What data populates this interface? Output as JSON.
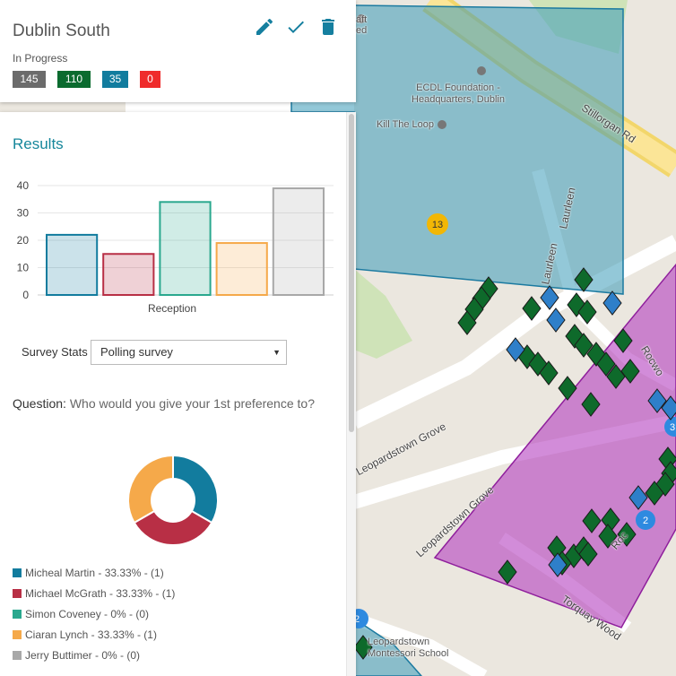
{
  "map": {
    "poi": [
      {
        "name": "ECDL Foundation - Headquarters, Dublin"
      },
      {
        "name": "Kill The Loop"
      },
      {
        "name": "Leopardstown Montessori School"
      }
    ],
    "poi_partial": [
      "aft",
      "ed"
    ],
    "roads": [
      "Stillorgan Rd",
      "Laurleen",
      "Laurleen",
      "Leopardstown Grove",
      "Leopardstown Grove",
      "Torquay Wood",
      "Rocwo",
      "Roc"
    ],
    "clusters": [
      {
        "label": "13",
        "color": "#f2b705"
      },
      {
        "label": "2",
        "color": "#2e8ae0"
      },
      {
        "label": "3",
        "color": "#2e8ae0"
      },
      {
        "label": "2",
        "color": "#2e8ae0"
      }
    ],
    "colors": {
      "blue_polygon": "#3a9ab8",
      "purple_polygon": "#b43fc0",
      "marker_green": "#0e6a2b",
      "marker_blue": "#2e7fc9"
    }
  },
  "header": {
    "title": "Dublin South",
    "status": "In Progress",
    "edit_icon": "pencil-icon",
    "confirm_icon": "check-icon",
    "delete_icon": "trash-icon",
    "badges": [
      {
        "value": "145",
        "color": "#6b6b6b"
      },
      {
        "value": "110",
        "color": "#0b6b2f"
      },
      {
        "value": "35",
        "color": "#127c9e"
      },
      {
        "value": "0",
        "color": "#ef2b2b"
      }
    ]
  },
  "results": {
    "title": "Results",
    "survey_label": "Survey Stats",
    "survey_selected": "Polling survey",
    "question_label": "Question:",
    "question_text": "Who would you give your 1st preference to?"
  },
  "chart_data": [
    {
      "type": "bar",
      "categories": [
        "Reception"
      ],
      "series": [
        {
          "values": [
            22
          ],
          "color": "#127c9e"
        },
        {
          "values": [
            15
          ],
          "color": "#b82f45"
        },
        {
          "values": [
            34
          ],
          "color": "#2aa88e"
        },
        {
          "values": [
            19
          ],
          "color": "#f5a94a"
        },
        {
          "values": [
            39
          ],
          "color": "#a8a8a8"
        }
      ],
      "yticks": [
        "0",
        "10",
        "20",
        "30",
        "40"
      ],
      "ylim": [
        0,
        40
      ],
      "xlabel": "Reception",
      "grid": true
    },
    {
      "type": "pie",
      "donut": true,
      "slices": [
        {
          "label": "Micheal Martin - 33.33% - (1)",
          "value": 33.33,
          "color": "#127c9e"
        },
        {
          "label": "Michael McGrath - 33.33% - (1)",
          "value": 33.33,
          "color": "#b82f45"
        },
        {
          "label": "Simon Coveney - 0% - (0)",
          "value": 0,
          "color": "#2aa88e"
        },
        {
          "label": "Ciaran Lynch - 33.33% - (1)",
          "value": 33.33,
          "color": "#f5a94a"
        },
        {
          "label": "Jerry Buttimer - 0% - (0)",
          "value": 0,
          "color": "#a8a8a8"
        }
      ]
    }
  ]
}
